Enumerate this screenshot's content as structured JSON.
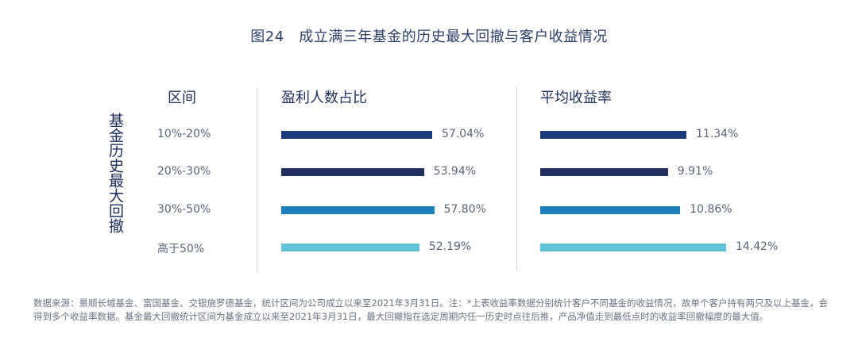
{
  "title": "图24　成立满三年基金的历史最大回撤与客户收益情况",
  "row_axis_label": "基金历史最大回撤",
  "chart_data": {
    "type": "bar",
    "orientation": "horizontal",
    "category_header": "区间",
    "categories": [
      "10%-20%",
      "20%-30%",
      "30%-50%",
      "高于50%"
    ],
    "category_colors": [
      "#1b3a7e",
      "#21305e",
      "#1f7fbc",
      "#62c3d8"
    ],
    "panels": [
      {
        "title": "盈利人数占比",
        "values": [
          57.04,
          53.94,
          57.8,
          52.19
        ],
        "labels": [
          "57.04%",
          "53.94%",
          "57.80%",
          "52.19%"
        ]
      },
      {
        "title": "平均收益率",
        "values": [
          11.34,
          9.91,
          10.86,
          14.42
        ],
        "labels": [
          "11.34%",
          "9.91%",
          "10.86%",
          "14.42%"
        ]
      }
    ]
  },
  "footnote": "数据来源：景顺长城基金、富国基金、交银施罗德基金，统计区间为公司成立以来至2021年3月31日。注：*上表收益率数据分别统计客户不同基金的收益情况，故单个客户持有两只及以上基金，会得到多个收益率数据。基金最大回撤统计区间为基金成立以来至2021年3月31日，最大回撤指在选定周期内任一历史时点往后推，产品净值走到最低点时的收益率回撤幅度的最大值。"
}
